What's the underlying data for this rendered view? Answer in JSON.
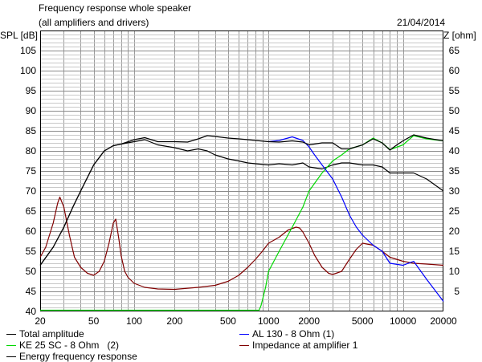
{
  "header": {
    "title": "Frequency response whole speaker",
    "subtitle": "(all amplifiers and drivers)",
    "date": "21/04/2014"
  },
  "chart_data": {
    "type": "line",
    "ylabel": "SPL [dB]",
    "y2label": "Z [ohm]",
    "x_scale": "log",
    "xlim": [
      20,
      20000
    ],
    "ylim": [
      40,
      110
    ],
    "y2lim": [
      0,
      70
    ],
    "grid": true,
    "x_ticks": [
      "20",
      "50",
      "100",
      "200",
      "500",
      "1000",
      "2000",
      "5000",
      "10000",
      "20000"
    ],
    "y_ticks": [
      "105",
      "100",
      "95",
      "90",
      "85",
      "80",
      "75",
      "70",
      "65",
      "60",
      "55",
      "50",
      "45",
      "40"
    ],
    "y2_ticks": [
      "65",
      "60",
      "55",
      "50",
      "45",
      "40",
      "35",
      "30",
      "25",
      "20",
      "15",
      "10",
      "5"
    ],
    "legend_position": "bottom",
    "series": [
      {
        "name": "Total amplitude",
        "color": "#000000",
        "axis": "left",
        "x": [
          20,
          25,
          30,
          35,
          40,
          50,
          60,
          70,
          80,
          100,
          120,
          150,
          200,
          250,
          300,
          350,
          400,
          500,
          600,
          700,
          800,
          1000,
          1200,
          1500,
          1800,
          2000,
          2500,
          3000,
          3500,
          4000,
          5000,
          6000,
          7000,
          8000,
          9000,
          10000,
          12000,
          15000,
          20000
        ],
        "y": [
          51.5,
          56,
          61,
          66,
          70,
          76.5,
          80,
          81.3,
          81.7,
          82.8,
          83.3,
          82.3,
          82.3,
          82.2,
          83,
          83.8,
          83.6,
          83.2,
          83,
          82.8,
          82.6,
          82.3,
          82.2,
          82.5,
          82.2,
          81.5,
          82,
          82,
          80.5,
          80.5,
          81.5,
          83,
          82,
          80.2,
          81.5,
          82.5,
          84,
          83.2,
          82.5
        ]
      },
      {
        "name": "AL 130 - 8 Ohm (1)",
        "color": "#0000ff",
        "axis": "left",
        "x": [
          1000,
          1200,
          1500,
          1800,
          2000,
          2200,
          2500,
          3000,
          3500,
          4000,
          4500,
          5000,
          6000,
          7000,
          8000,
          10000,
          12000,
          15000,
          20000
        ],
        "y": [
          82.3,
          82.6,
          83.5,
          82.6,
          81,
          79,
          76.5,
          73,
          68.5,
          64,
          61,
          59,
          56.5,
          55,
          52,
          51.5,
          52.5,
          48,
          42.5
        ]
      },
      {
        "name": "KE 25 SC - 8 Ohm   (2)",
        "color": "#00d800",
        "axis": "left",
        "x": [
          20,
          100,
          500,
          850,
          880,
          950,
          1000,
          1200,
          1500,
          1800,
          2000,
          2500,
          3000,
          3500,
          4000,
          5000,
          6000,
          7000,
          8000,
          10000,
          12000,
          15000,
          20000
        ],
        "y": [
          40.3,
          40.3,
          40.3,
          40.3,
          41.5,
          46,
          50,
          55,
          61,
          66,
          70,
          74.5,
          77.5,
          79,
          80.5,
          81.5,
          83.2,
          82,
          80.3,
          81.5,
          83.8,
          83,
          82.5
        ]
      },
      {
        "name": "Impedance at amplifier 1",
        "color": "#800000",
        "axis": "right",
        "x": [
          20,
          22,
          25,
          27,
          28,
          30,
          33,
          36,
          40,
          45,
          50,
          55,
          60,
          65,
          70,
          73,
          77,
          80,
          85,
          90,
          100,
          120,
          150,
          200,
          300,
          400,
          500,
          600,
          700,
          800,
          900,
          1000,
          1200,
          1400,
          1600,
          1700,
          1800,
          2000,
          2200,
          2500,
          2800,
          3000,
          3500,
          4000,
          4500,
          5000,
          6000,
          7000,
          8000,
          10000,
          12000,
          15000,
          20000
        ],
        "y": [
          13.5,
          16,
          22,
          27,
          28.5,
          26,
          19,
          13.5,
          11,
          9.5,
          9,
          10,
          12.5,
          17,
          22,
          23,
          18,
          14,
          10,
          8.5,
          7,
          6,
          5.6,
          5.5,
          6,
          6.5,
          7.5,
          9,
          11,
          13,
          15,
          17,
          18.5,
          20.3,
          21,
          20.8,
          19.8,
          17,
          14,
          11,
          9.5,
          9.2,
          10,
          13,
          15.5,
          17,
          16.5,
          15,
          13.5,
          12.5,
          12,
          11.8,
          11.5
        ]
      },
      {
        "name": "Energy frequency response",
        "color": "#000000",
        "axis": "left",
        "x": [
          20,
          25,
          30,
          35,
          40,
          50,
          60,
          70,
          80,
          100,
          120,
          150,
          200,
          250,
          300,
          350,
          400,
          500,
          600,
          700,
          800,
          1000,
          1200,
          1500,
          1800,
          2000,
          2500,
          3000,
          3500,
          4000,
          5000,
          6000,
          7000,
          8000,
          10000,
          12000,
          15000,
          20000
        ],
        "y": [
          51.5,
          56,
          61,
          66,
          70,
          76.5,
          80,
          81.3,
          81.7,
          82.3,
          82.8,
          81.5,
          80.8,
          80,
          80.5,
          80,
          79,
          78,
          77.5,
          77,
          76.8,
          76.5,
          76.8,
          76.5,
          77,
          76,
          75.5,
          76.5,
          77,
          77,
          76.5,
          76.5,
          76,
          74.5,
          74.5,
          74.5,
          73,
          70
        ]
      }
    ]
  }
}
